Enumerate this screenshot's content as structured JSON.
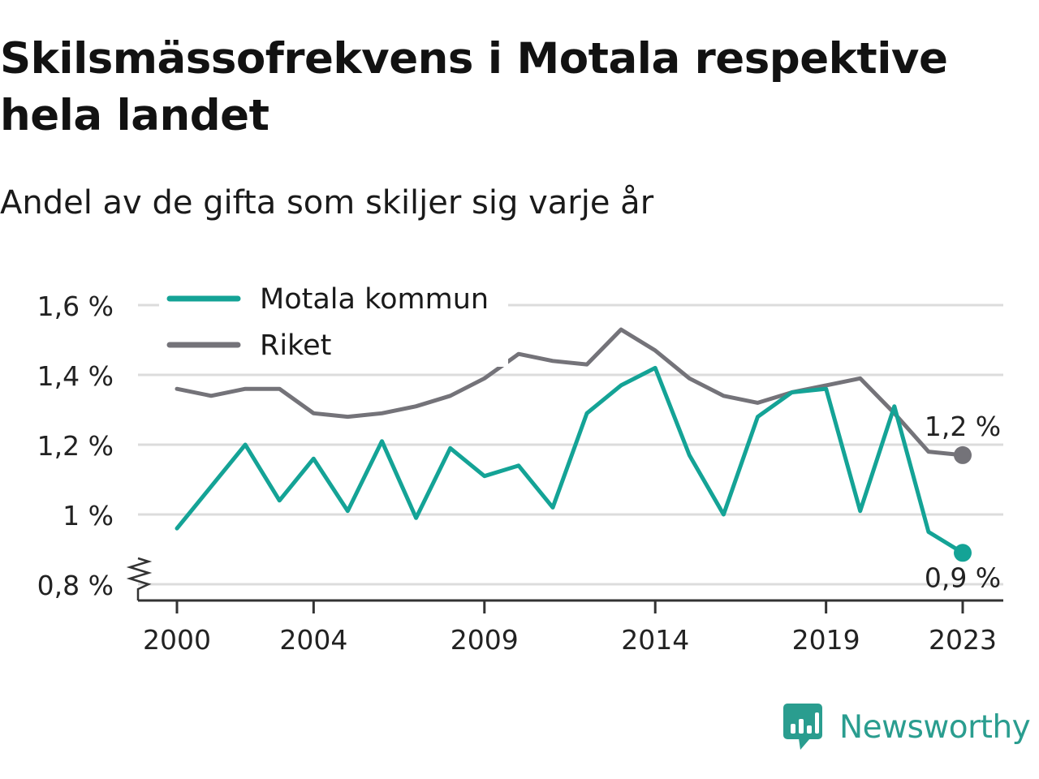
{
  "title": "Skilsmässofrekvens i Motala respektive hela landet",
  "subtitle": "Andel av de gifta som skiljer sig varje år",
  "brand": "Newsworthy",
  "colors": {
    "motala": "#14a396",
    "riket": "#747379",
    "grid": "#dcdcdc",
    "axis": "#333333",
    "brand": "#2a9d8f"
  },
  "chart_data": {
    "type": "line",
    "title": "Skilsmässofrekvens i Motala respektive hela landet",
    "subtitle": "Andel av de gifta som skiljer sig varje år",
    "xlabel": "",
    "ylabel": "",
    "x": [
      2000,
      2001,
      2002,
      2003,
      2004,
      2005,
      2006,
      2007,
      2008,
      2009,
      2010,
      2011,
      2012,
      2013,
      2014,
      2015,
      2016,
      2017,
      2018,
      2019,
      2020,
      2021,
      2022,
      2023
    ],
    "x_ticks": [
      2000,
      2004,
      2009,
      2014,
      2019,
      2023
    ],
    "y_ticks": [
      0.8,
      1.0,
      1.2,
      1.4,
      1.6
    ],
    "y_tick_labels": [
      "0,8 %",
      "1 %",
      "1,2 %",
      "1,4 %",
      "1,6 %"
    ],
    "ylim": [
      0.8,
      1.6
    ],
    "y_axis_break": true,
    "grid": true,
    "legend_position": "top-left",
    "series": [
      {
        "name": "Motala kommun",
        "color": "#14a396",
        "values": [
          0.96,
          1.08,
          1.2,
          1.04,
          1.16,
          1.01,
          1.21,
          0.99,
          1.19,
          1.11,
          1.14,
          1.02,
          1.29,
          1.37,
          1.42,
          1.17,
          1.0,
          1.28,
          1.35,
          1.36,
          1.01,
          1.31,
          0.95,
          0.89
        ],
        "end_label": "0,9 %"
      },
      {
        "name": "Riket",
        "color": "#747379",
        "values": [
          1.36,
          1.34,
          1.36,
          1.36,
          1.29,
          1.28,
          1.29,
          1.31,
          1.34,
          1.39,
          1.46,
          1.44,
          1.43,
          1.53,
          1.47,
          1.39,
          1.34,
          1.32,
          1.35,
          1.37,
          1.39,
          1.29,
          1.18,
          1.17
        ],
        "end_label": "1,2 %"
      }
    ]
  }
}
